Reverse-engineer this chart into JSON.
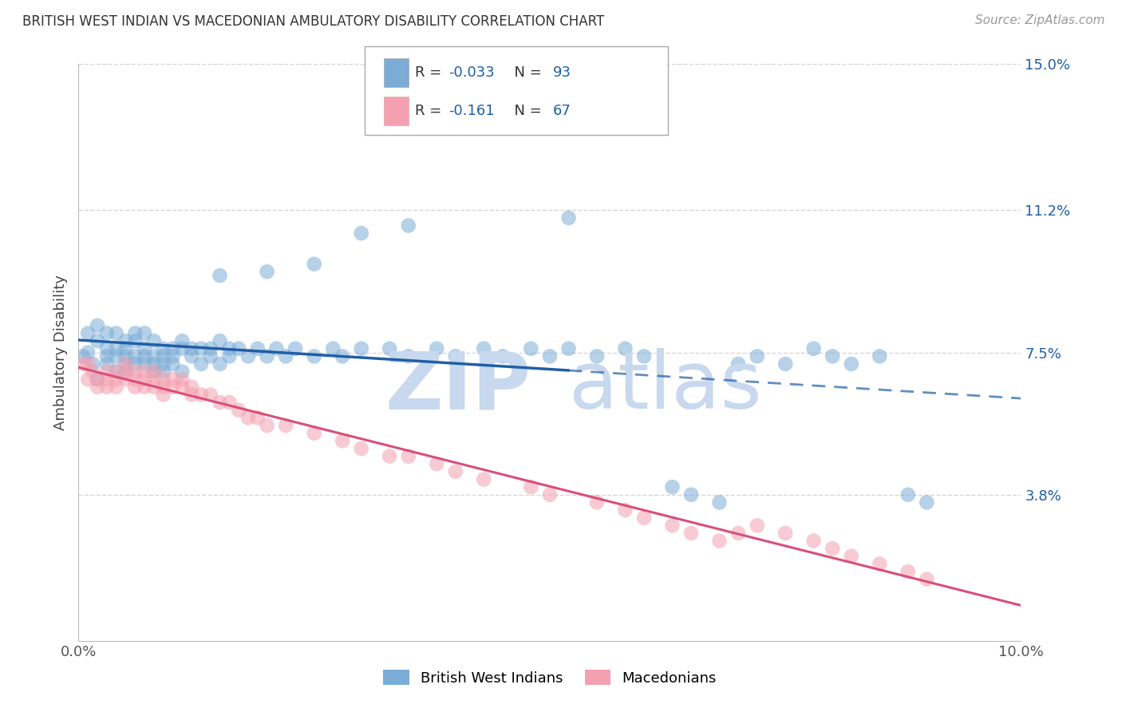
{
  "title": "BRITISH WEST INDIAN VS MACEDONIAN AMBULATORY DISABILITY CORRELATION CHART",
  "source": "Source: ZipAtlas.com",
  "ylabel": "Ambulatory Disability",
  "xlim": [
    0.0,
    0.1
  ],
  "ylim": [
    0.0,
    0.15
  ],
  "yticks": [
    0.038,
    0.075,
    0.112,
    0.15
  ],
  "ytick_labels": [
    "3.8%",
    "7.5%",
    "11.2%",
    "15.0%"
  ],
  "xticks": [
    0.0,
    0.1
  ],
  "xtick_labels": [
    "0.0%",
    "10.0%"
  ],
  "grid_color": "#cccccc",
  "background_color": "#ffffff",
  "blue_color": "#7aacd6",
  "pink_color": "#f4a0b0",
  "blue_line_color": "#1f5fa6",
  "pink_line_color": "#d94f7a",
  "blue_line_solid_end": 0.052,
  "watermark": "ZIPAtlas",
  "blue_x": [
    0.0005,
    0.001,
    0.001,
    0.0015,
    0.002,
    0.002,
    0.002,
    0.003,
    0.003,
    0.003,
    0.003,
    0.004,
    0.004,
    0.004,
    0.004,
    0.005,
    0.005,
    0.005,
    0.005,
    0.005,
    0.006,
    0.006,
    0.006,
    0.006,
    0.007,
    0.007,
    0.007,
    0.007,
    0.008,
    0.008,
    0.008,
    0.008,
    0.009,
    0.009,
    0.009,
    0.009,
    0.01,
    0.01,
    0.01,
    0.011,
    0.011,
    0.011,
    0.012,
    0.012,
    0.013,
    0.013,
    0.014,
    0.014,
    0.015,
    0.015,
    0.016,
    0.016,
    0.017,
    0.018,
    0.019,
    0.02,
    0.021,
    0.022,
    0.023,
    0.025,
    0.027,
    0.028,
    0.03,
    0.033,
    0.035,
    0.038,
    0.04,
    0.043,
    0.045,
    0.048,
    0.05,
    0.052,
    0.055,
    0.058,
    0.06,
    0.063,
    0.065,
    0.068,
    0.07,
    0.072,
    0.075,
    0.078,
    0.08,
    0.082,
    0.085,
    0.088,
    0.09,
    0.052,
    0.035,
    0.03,
    0.025,
    0.02,
    0.015
  ],
  "blue_y": [
    0.074,
    0.075,
    0.08,
    0.072,
    0.078,
    0.068,
    0.082,
    0.076,
    0.074,
    0.072,
    0.08,
    0.076,
    0.074,
    0.07,
    0.08,
    0.074,
    0.076,
    0.072,
    0.07,
    0.078,
    0.074,
    0.072,
    0.08,
    0.078,
    0.076,
    0.074,
    0.072,
    0.08,
    0.074,
    0.072,
    0.07,
    0.078,
    0.076,
    0.074,
    0.072,
    0.07,
    0.076,
    0.074,
    0.072,
    0.078,
    0.076,
    0.07,
    0.074,
    0.076,
    0.076,
    0.072,
    0.076,
    0.074,
    0.078,
    0.072,
    0.076,
    0.074,
    0.076,
    0.074,
    0.076,
    0.074,
    0.076,
    0.074,
    0.076,
    0.074,
    0.076,
    0.074,
    0.076,
    0.076,
    0.074,
    0.076,
    0.074,
    0.076,
    0.074,
    0.076,
    0.074,
    0.076,
    0.074,
    0.076,
    0.074,
    0.04,
    0.038,
    0.036,
    0.072,
    0.074,
    0.072,
    0.076,
    0.074,
    0.072,
    0.074,
    0.038,
    0.036,
    0.11,
    0.108,
    0.106,
    0.098,
    0.096,
    0.095
  ],
  "pink_x": [
    0.0005,
    0.001,
    0.001,
    0.0015,
    0.002,
    0.002,
    0.003,
    0.003,
    0.003,
    0.004,
    0.004,
    0.004,
    0.005,
    0.005,
    0.005,
    0.006,
    0.006,
    0.006,
    0.007,
    0.007,
    0.007,
    0.008,
    0.008,
    0.008,
    0.009,
    0.009,
    0.009,
    0.01,
    0.01,
    0.011,
    0.011,
    0.012,
    0.012,
    0.013,
    0.014,
    0.015,
    0.016,
    0.017,
    0.018,
    0.019,
    0.02,
    0.022,
    0.025,
    0.028,
    0.03,
    0.033,
    0.035,
    0.038,
    0.04,
    0.043,
    0.048,
    0.05,
    0.055,
    0.058,
    0.06,
    0.063,
    0.065,
    0.068,
    0.07,
    0.072,
    0.075,
    0.078,
    0.08,
    0.082,
    0.085,
    0.088,
    0.09
  ],
  "pink_y": [
    0.072,
    0.072,
    0.068,
    0.07,
    0.068,
    0.066,
    0.07,
    0.068,
    0.066,
    0.07,
    0.068,
    0.066,
    0.072,
    0.07,
    0.068,
    0.07,
    0.068,
    0.066,
    0.07,
    0.068,
    0.066,
    0.07,
    0.068,
    0.066,
    0.068,
    0.066,
    0.064,
    0.068,
    0.066,
    0.068,
    0.066,
    0.066,
    0.064,
    0.064,
    0.064,
    0.062,
    0.062,
    0.06,
    0.058,
    0.058,
    0.056,
    0.056,
    0.054,
    0.052,
    0.05,
    0.048,
    0.048,
    0.046,
    0.044,
    0.042,
    0.04,
    0.038,
    0.036,
    0.034,
    0.032,
    0.03,
    0.028,
    0.026,
    0.028,
    0.03,
    0.028,
    0.026,
    0.024,
    0.022,
    0.02,
    0.018,
    0.016
  ]
}
